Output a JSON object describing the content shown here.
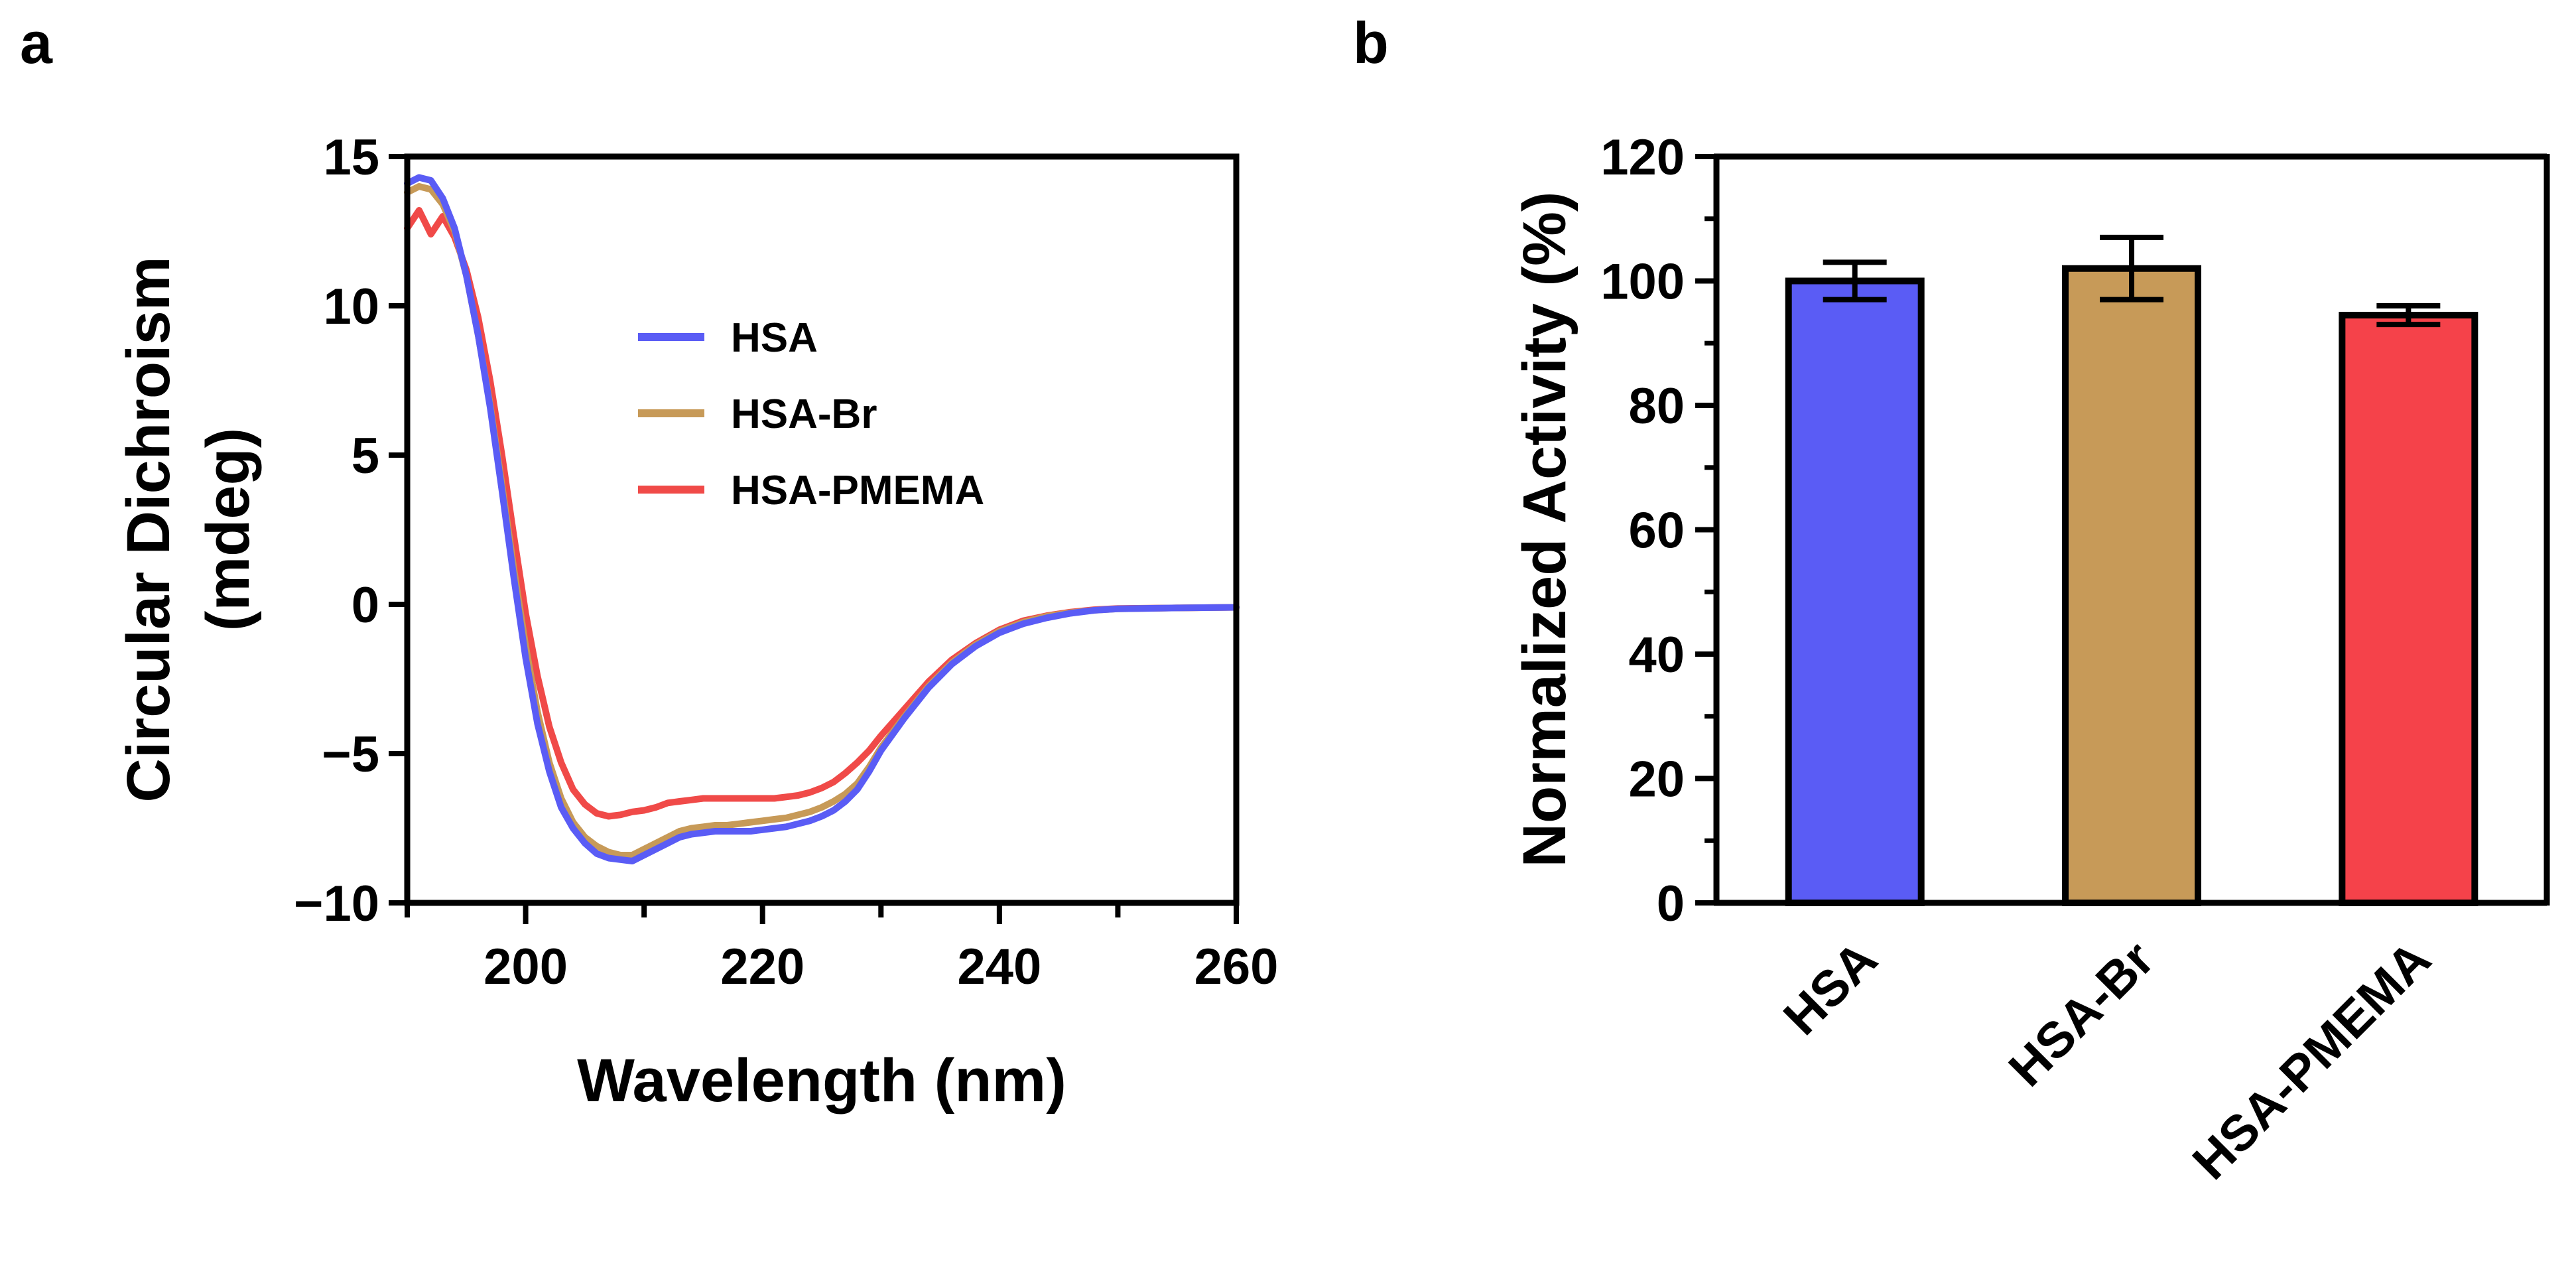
{
  "figure": {
    "panel_a_letter": "a",
    "panel_b_letter": "b"
  },
  "chart_data": [
    {
      "id": "panel-a",
      "type": "line",
      "title": "",
      "xlabel": "Wavelength (nm)",
      "ylabel_line1": "Circular Dichroism",
      "ylabel_line2": "(mdeg)",
      "xlim": [
        190,
        260
      ],
      "ylim": [
        -10,
        15
      ],
      "xticks": [
        200,
        220,
        240,
        260
      ],
      "xtick_labels": [
        "200",
        "220",
        "240",
        "260"
      ],
      "yticks": [
        -10,
        -5,
        0,
        5,
        10,
        15
      ],
      "ytick_labels": [
        "−10",
        "−5",
        "0",
        "5",
        "10",
        "15"
      ],
      "x_minor_ticks": [
        190,
        210,
        230,
        250
      ],
      "legend_position": "upper-middle",
      "series": [
        {
          "name": "HSA",
          "color": "#5a5cf5",
          "x": [
            190,
            191,
            192,
            193,
            194,
            195,
            196,
            197,
            198,
            199,
            200,
            201,
            202,
            203,
            204,
            205,
            206,
            207,
            208,
            209,
            210,
            211,
            212,
            213,
            214,
            215,
            216,
            217,
            218,
            219,
            220,
            221,
            222,
            223,
            224,
            225,
            226,
            227,
            228,
            229,
            230,
            232,
            234,
            236,
            238,
            240,
            242,
            244,
            246,
            248,
            250,
            255,
            260
          ],
          "y": [
            14.1,
            14.3,
            14.2,
            13.6,
            12.6,
            11.0,
            9.0,
            6.6,
            3.8,
            0.9,
            -1.8,
            -4.0,
            -5.6,
            -6.8,
            -7.5,
            -8.0,
            -8.35,
            -8.5,
            -8.55,
            -8.6,
            -8.4,
            -8.2,
            -8.0,
            -7.8,
            -7.7,
            -7.65,
            -7.6,
            -7.6,
            -7.6,
            -7.6,
            -7.55,
            -7.5,
            -7.45,
            -7.35,
            -7.25,
            -7.1,
            -6.9,
            -6.6,
            -6.2,
            -5.6,
            -4.9,
            -3.8,
            -2.8,
            -2.0,
            -1.4,
            -0.95,
            -0.65,
            -0.45,
            -0.3,
            -0.2,
            -0.15,
            -0.12,
            -0.1
          ]
        },
        {
          "name": "HSA-Br",
          "color": "#c79a58",
          "x": [
            190,
            191,
            192,
            193,
            194,
            195,
            196,
            197,
            198,
            199,
            200,
            201,
            202,
            203,
            204,
            205,
            206,
            207,
            208,
            209,
            210,
            211,
            212,
            213,
            214,
            215,
            216,
            217,
            218,
            219,
            220,
            221,
            222,
            223,
            224,
            225,
            226,
            227,
            228,
            229,
            230,
            232,
            234,
            236,
            238,
            240,
            242,
            244,
            246,
            248,
            250,
            255,
            260
          ],
          "y": [
            13.8,
            14.0,
            13.9,
            13.4,
            12.5,
            11.0,
            9.0,
            6.7,
            4.0,
            1.2,
            -1.4,
            -3.6,
            -5.3,
            -6.5,
            -7.3,
            -7.8,
            -8.1,
            -8.3,
            -8.4,
            -8.4,
            -8.2,
            -8.0,
            -7.8,
            -7.6,
            -7.5,
            -7.45,
            -7.4,
            -7.4,
            -7.35,
            -7.3,
            -7.25,
            -7.2,
            -7.15,
            -7.05,
            -6.95,
            -6.8,
            -6.6,
            -6.35,
            -6.0,
            -5.45,
            -4.8,
            -3.75,
            -2.75,
            -1.95,
            -1.35,
            -0.9,
            -0.6,
            -0.4,
            -0.28,
            -0.2,
            -0.15,
            -0.12,
            -0.1
          ]
        },
        {
          "name": "HSA-PMEMA",
          "color": "#f04a48",
          "x": [
            190,
            191,
            192,
            193,
            194,
            195,
            196,
            197,
            198,
            199,
            200,
            201,
            202,
            203,
            204,
            205,
            206,
            207,
            208,
            209,
            210,
            211,
            212,
            213,
            214,
            215,
            216,
            217,
            218,
            219,
            220,
            221,
            222,
            223,
            224,
            225,
            226,
            227,
            228,
            229,
            230,
            232,
            234,
            236,
            238,
            240,
            242,
            244,
            246,
            248,
            250,
            255,
            260
          ],
          "y": [
            12.6,
            13.2,
            12.4,
            13.0,
            12.3,
            11.2,
            9.6,
            7.5,
            5.0,
            2.3,
            -0.3,
            -2.4,
            -4.1,
            -5.3,
            -6.2,
            -6.7,
            -7.0,
            -7.1,
            -7.05,
            -6.95,
            -6.9,
            -6.8,
            -6.65,
            -6.6,
            -6.55,
            -6.5,
            -6.5,
            -6.5,
            -6.5,
            -6.5,
            -6.5,
            -6.5,
            -6.45,
            -6.4,
            -6.3,
            -6.15,
            -5.95,
            -5.65,
            -5.3,
            -4.9,
            -4.4,
            -3.5,
            -2.6,
            -1.85,
            -1.3,
            -0.85,
            -0.55,
            -0.38,
            -0.26,
            -0.18,
            -0.14,
            -0.12,
            -0.1
          ]
        }
      ]
    },
    {
      "id": "panel-b",
      "type": "bar",
      "title": "",
      "xlabel": "",
      "ylabel": "Normalized Activity (%)",
      "ylim": [
        0,
        120
      ],
      "yticks": [
        0,
        20,
        40,
        60,
        80,
        100,
        120
      ],
      "ytick_labels": [
        "0",
        "20",
        "40",
        "60",
        "80",
        "100",
        "120"
      ],
      "y_minor_ticks": [
        10,
        30,
        50,
        70,
        90,
        110
      ],
      "categories": [
        "HSA",
        "HSA-Br",
        "HSA-PMEMA"
      ],
      "values": [
        100,
        102,
        94.5
      ],
      "errors": [
        3,
        5,
        1.5
      ],
      "colors": [
        "#5a5cf5",
        "#c79a58",
        "#f5424a"
      ]
    }
  ]
}
